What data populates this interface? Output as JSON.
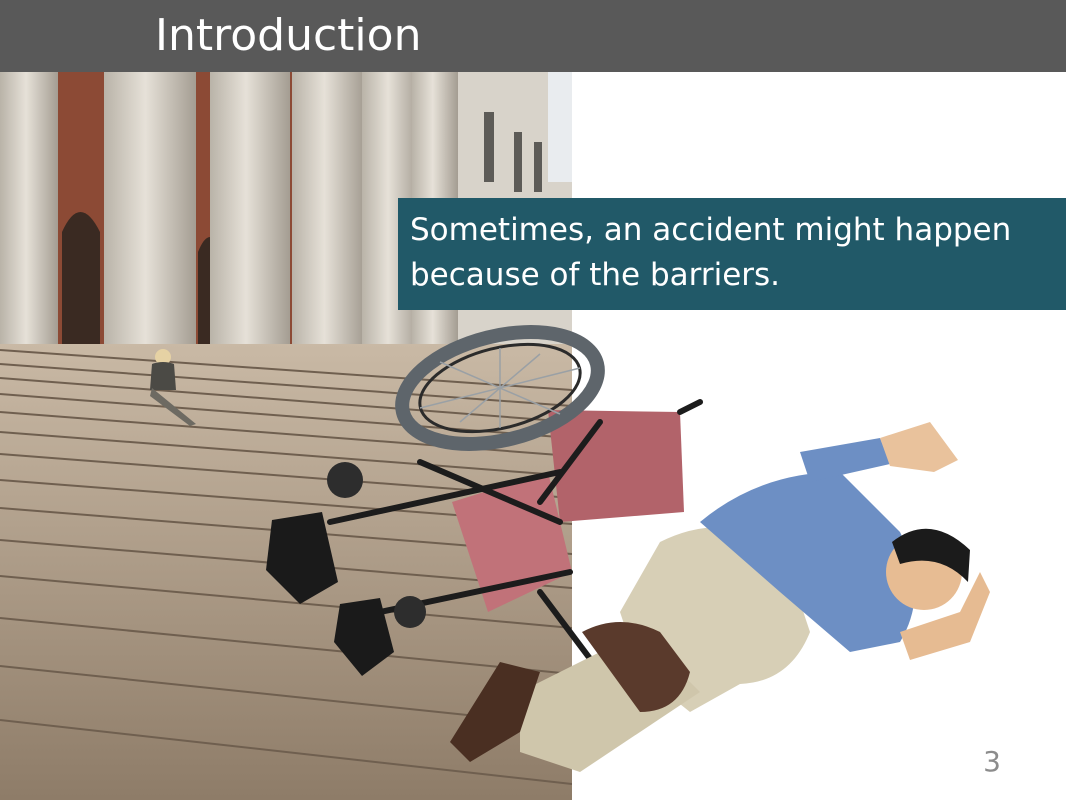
{
  "slide": {
    "title": "Introduction",
    "callout": {
      "line1": "Sometimes, an accident might happen",
      "line2": "because of the barriers."
    },
    "page_number": "3"
  },
  "colors": {
    "title_bar": "#595959",
    "callout_bg": "#215968",
    "page_number": "#8c8c8c"
  }
}
